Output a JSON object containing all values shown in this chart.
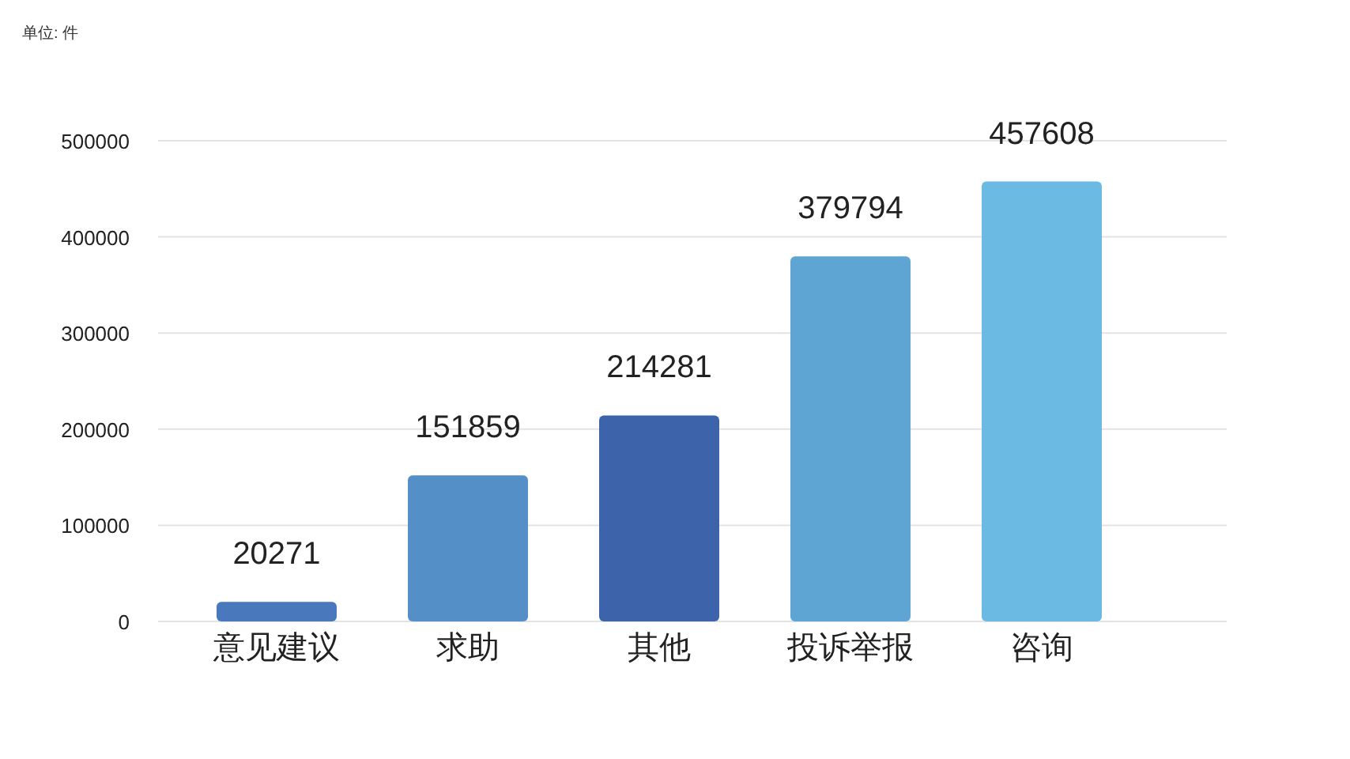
{
  "chart_data": {
    "type": "bar",
    "title": "单位: 件",
    "categories": [
      "意见建议",
      "求助",
      "其他",
      "投诉举报",
      "咨询"
    ],
    "values": [
      20271,
      151859,
      214281,
      379794,
      457608
    ],
    "colors": [
      "#4a78bd",
      "#548fc8",
      "#3d64aa",
      "#5fa5d4",
      "#6bbae3"
    ],
    "ylim": [
      0,
      500000
    ],
    "yticks": [
      0,
      100000,
      200000,
      300000,
      400000,
      500000
    ],
    "grid": "y",
    "data_labels": true
  }
}
